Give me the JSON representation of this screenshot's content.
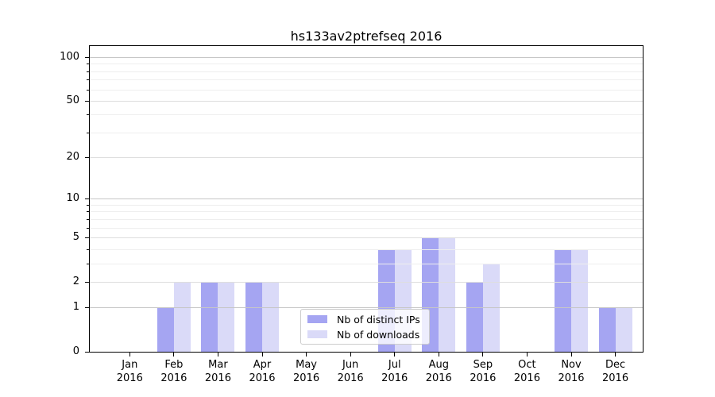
{
  "title": "hs133av2ptrefseq 2016",
  "colors": {
    "distinct_ips": "#a5a5f2",
    "downloads": "#dadaf8",
    "axis": "#000000",
    "grid_major": "#c6c6c6",
    "grid_mid": "#dedede",
    "grid_minor": "#eeeeee",
    "legend_border": "#cccccc"
  },
  "chart_data": {
    "type": "bar",
    "title": "hs133av2ptrefseq 2016",
    "categories": [
      "Jan",
      "Feb",
      "Mar",
      "Apr",
      "May",
      "Jun",
      "Jul",
      "Aug",
      "Sep",
      "Oct",
      "Nov",
      "Dec"
    ],
    "category_year": "2016",
    "series": [
      {
        "name": "Nb of distinct IPs",
        "color": "#a5a5f2",
        "values": [
          0,
          1,
          2,
          2,
          0,
          0,
          4,
          5,
          2,
          0,
          4,
          1
        ]
      },
      {
        "name": "Nb of downloads",
        "color": "#dadaf8",
        "values": [
          0,
          2,
          2,
          2,
          0,
          0,
          4,
          5,
          3,
          0,
          4,
          1
        ]
      }
    ],
    "yscale": "log1p",
    "ylim": [
      0,
      119
    ],
    "yticks": [
      0,
      1,
      2,
      5,
      10,
      20,
      50,
      100
    ],
    "yticks_minor": [
      3,
      4,
      6,
      7,
      8,
      9,
      30,
      40,
      60,
      70,
      80,
      90
    ],
    "yticks_power10": [
      1,
      10,
      100
    ],
    "grid": true,
    "legend_position": "lower center",
    "xlabel": "",
    "ylabel": ""
  }
}
